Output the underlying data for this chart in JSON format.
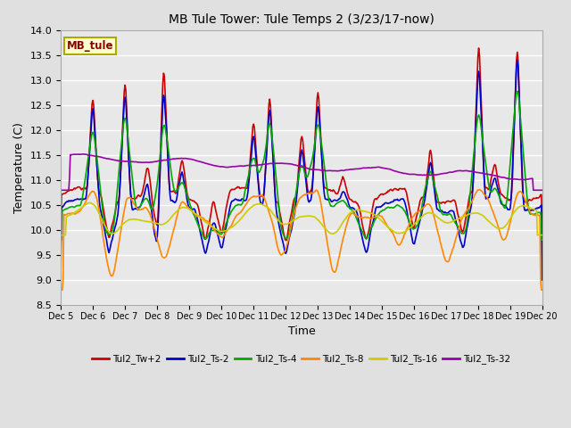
{
  "title": "MB Tule Tower: Tule Temps 2 (3/23/17-now)",
  "xlabel": "Time",
  "ylabel": "Temperature (C)",
  "ylim": [
    8.5,
    14.0
  ],
  "yticks": [
    8.5,
    9.0,
    9.5,
    10.0,
    10.5,
    11.0,
    11.5,
    12.0,
    12.5,
    13.0,
    13.5,
    14.0
  ],
  "fig_bg": "#e0e0e0",
  "plot_bg": "#e8e8e8",
  "grid_color": "#ffffff",
  "legend_label": "MB_tule",
  "series_names": [
    "Tul2_Tw+2",
    "Tul2_Ts-2",
    "Tul2_Ts-4",
    "Tul2_Ts-8",
    "Tul2_Ts-16",
    "Tul2_Ts-32"
  ],
  "series_colors": [
    "#cc0000",
    "#0000cc",
    "#00aa00",
    "#ff8800",
    "#cccc00",
    "#9900aa"
  ],
  "xtick_labels": [
    "Dec 5",
    "Dec 6",
    "Dec 7",
    "Dec 8",
    "Dec 9",
    "Dec 10",
    "Dec 11",
    "Dec 12",
    "Dec 13",
    "Dec 14",
    "Dec 15",
    "Dec 16",
    "Dec 17",
    "Dec 18",
    "Dec 19",
    "Dec 20"
  ]
}
